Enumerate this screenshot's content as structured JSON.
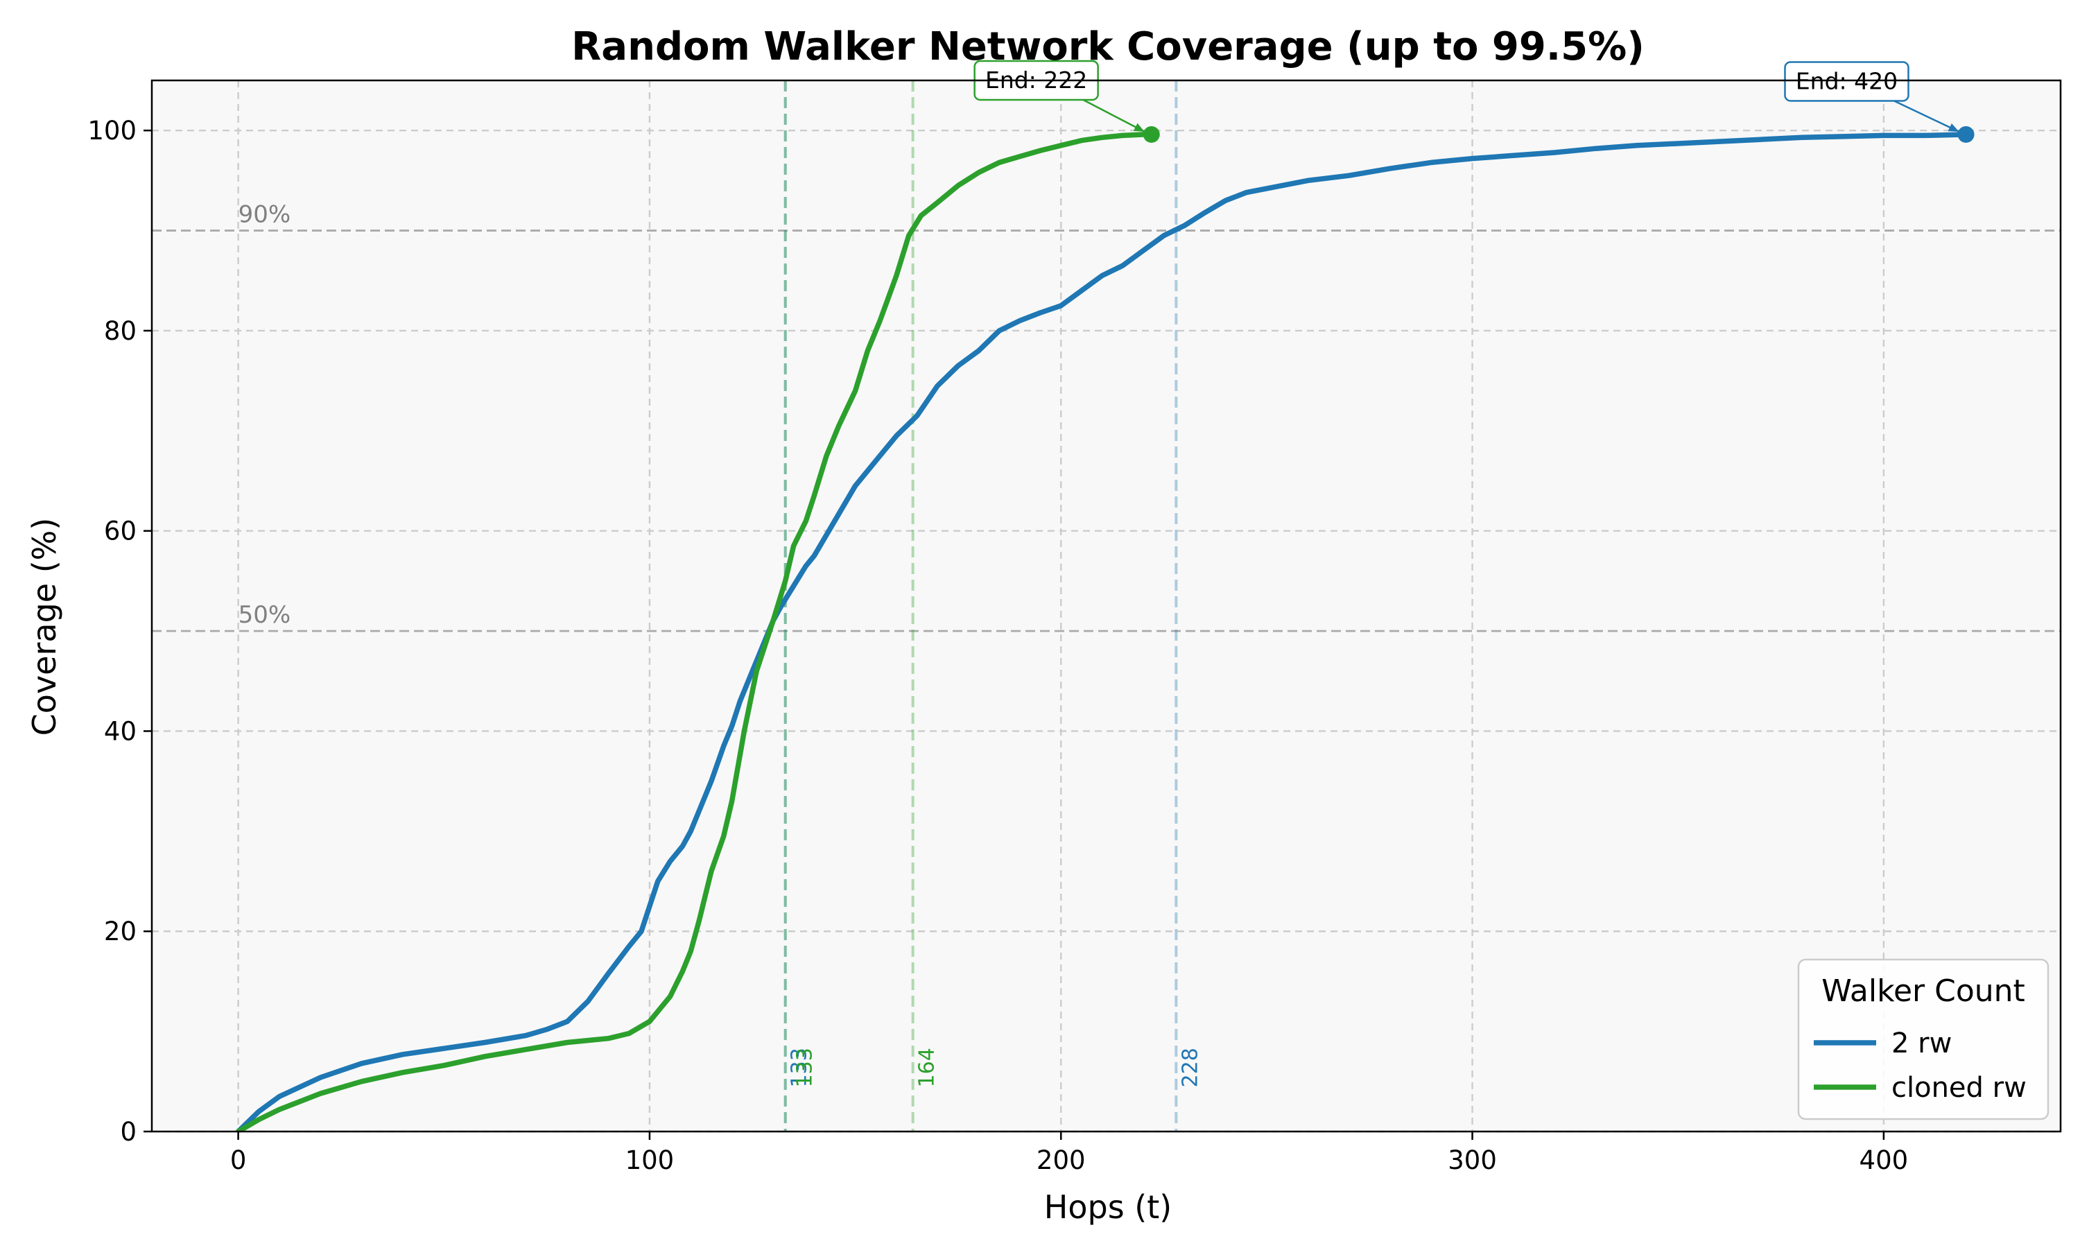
{
  "chart_data": {
    "type": "line",
    "title": "Random Walker Network Coverage (up to 99.5%)",
    "xlabel": "Hops (t)",
    "ylabel": "Coverage (%)",
    "xlim": [
      -21,
      443
    ],
    "ylim": [
      0,
      105
    ],
    "xticks": [
      0,
      100,
      200,
      300,
      400
    ],
    "yticks": [
      0,
      20,
      40,
      60,
      80,
      100
    ],
    "grid": true,
    "background": "#f8f8f8",
    "reference_lines": [
      {
        "y": 90,
        "label": "90%"
      },
      {
        "y": 50,
        "label": "50%"
      }
    ],
    "legend": {
      "title": "Walker Count",
      "position": "lower-right"
    },
    "series": [
      {
        "name": "2 rw",
        "color": "#1f77b4",
        "x": [
          0,
          5,
          10,
          20,
          30,
          40,
          50,
          60,
          70,
          75,
          80,
          85,
          90,
          95,
          98,
          100,
          102,
          105,
          108,
          110,
          112,
          115,
          118,
          120,
          122,
          125,
          128,
          130,
          132,
          135,
          138,
          140,
          145,
          150,
          155,
          160,
          165,
          170,
          175,
          180,
          185,
          190,
          195,
          200,
          205,
          210,
          215,
          220,
          225,
          230,
          235,
          240,
          245,
          250,
          260,
          270,
          280,
          290,
          300,
          310,
          320,
          330,
          340,
          350,
          360,
          370,
          380,
          390,
          400,
          410,
          420
        ],
        "y": [
          0,
          2.0,
          3.5,
          5.4,
          6.8,
          7.7,
          8.3,
          8.9,
          9.6,
          10.2,
          11.0,
          13.0,
          15.8,
          18.5,
          20.0,
          22.5,
          25.0,
          27.0,
          28.5,
          30.0,
          32.0,
          35.0,
          38.5,
          40.5,
          43.0,
          46.0,
          49.0,
          51.0,
          52.5,
          54.5,
          56.5,
          57.5,
          61.0,
          64.5,
          67.0,
          69.5,
          71.5,
          74.5,
          76.5,
          78.0,
          80.0,
          81.0,
          81.8,
          82.5,
          84.0,
          85.5,
          86.5,
          88.0,
          89.5,
          90.5,
          91.8,
          93.0,
          93.8,
          94.2,
          95.0,
          95.5,
          96.2,
          96.8,
          97.2,
          97.5,
          97.8,
          98.2,
          98.5,
          98.7,
          98.9,
          99.1,
          99.3,
          99.4,
          99.5,
          99.5,
          99.6
        ]
      },
      {
        "name": "cloned rw",
        "color": "#2ca02c",
        "x": [
          0,
          5,
          10,
          20,
          30,
          40,
          50,
          60,
          70,
          80,
          90,
          95,
          100,
          105,
          108,
          110,
          112,
          115,
          118,
          120,
          123,
          126,
          130,
          133,
          135,
          138,
          140,
          143,
          146,
          150,
          153,
          156,
          160,
          163,
          166,
          170,
          175,
          180,
          185,
          190,
          195,
          200,
          205,
          210,
          215,
          220,
          222
        ],
        "y": [
          0,
          1.2,
          2.2,
          3.8,
          5.0,
          5.9,
          6.6,
          7.5,
          8.2,
          8.9,
          9.3,
          9.8,
          11.0,
          13.5,
          16.0,
          18.0,
          21.0,
          26.0,
          29.5,
          33.0,
          40.0,
          46.0,
          51.0,
          55.0,
          58.5,
          61.0,
          63.5,
          67.5,
          70.5,
          74.0,
          78.0,
          81.0,
          85.5,
          89.5,
          91.5,
          92.8,
          94.5,
          95.8,
          96.8,
          97.4,
          98.0,
          98.5,
          99.0,
          99.3,
          99.5,
          99.6,
          99.6
        ]
      }
    ],
    "milestones": [
      {
        "x": 133,
        "label": "133",
        "color": "#1f77b4"
      },
      {
        "x": 133,
        "label": "133",
        "color": "#2ca02c"
      },
      {
        "x": 164,
        "label": "164",
        "color": "#2ca02c"
      },
      {
        "x": 228,
        "label": "228",
        "color": "#1f77b4"
      }
    ],
    "end_annotations": [
      {
        "x": 222,
        "y": 99.6,
        "label": "End: 222",
        "color": "#2ca02c",
        "text_x": 194,
        "text_y": 105
      },
      {
        "x": 420,
        "y": 99.6,
        "label": "End: 420",
        "color": "#1f77b4",
        "text_x": 391,
        "text_y": 104.9
      }
    ]
  }
}
